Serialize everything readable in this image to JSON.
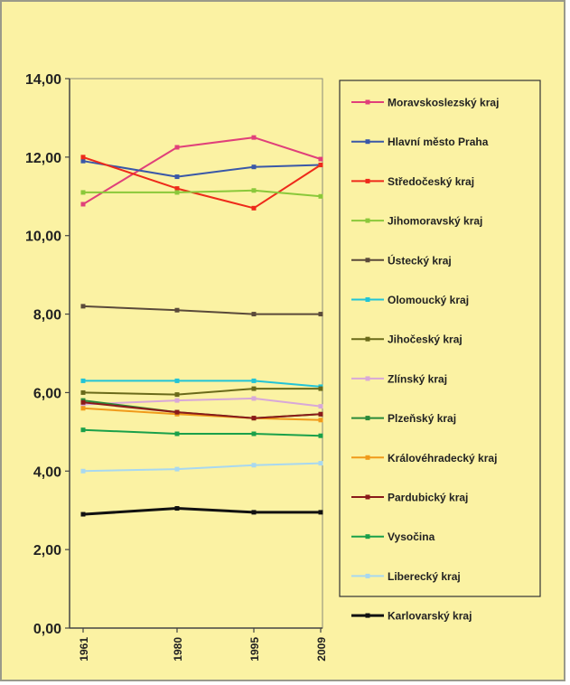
{
  "chart_data": {
    "type": "line",
    "title": "",
    "xlabel": "",
    "ylabel": "",
    "x": [
      "1961",
      "1980",
      "1995",
      "2009"
    ],
    "yticks": [
      "0,00",
      "2,00",
      "4,00",
      "6,00",
      "8,00",
      "10,00",
      "12,00",
      "14,00"
    ],
    "ylim": [
      0,
      14
    ],
    "grid": false,
    "legend_position": "right",
    "plot_background": "#fbf2a3",
    "series": [
      {
        "name": "Moravskoslezský kraj",
        "color": "#e0407a",
        "values": [
          10.8,
          12.25,
          12.5,
          11.95
        ]
      },
      {
        "name": "Hlavní město Praha",
        "color": "#3a58a8",
        "values": [
          11.9,
          11.5,
          11.75,
          11.8
        ]
      },
      {
        "name": "Středočeský kraj",
        "color": "#ee2a1a",
        "values": [
          12.0,
          11.2,
          10.7,
          11.8
        ]
      },
      {
        "name": "Jihomoravský kraj",
        "color": "#8ac83a",
        "values": [
          11.1,
          11.1,
          11.15,
          11.0
        ]
      },
      {
        "name": "Ústecký kraj",
        "color": "#5a4a3a",
        "values": [
          8.2,
          8.1,
          8.0,
          8.0
        ]
      },
      {
        "name": "Olomoucký kraj",
        "color": "#22c4d6",
        "values": [
          6.3,
          6.3,
          6.3,
          6.15
        ]
      },
      {
        "name": "Jihočeský kraj",
        "color": "#6a6a1a",
        "values": [
          6.0,
          5.95,
          6.1,
          6.1
        ]
      },
      {
        "name": "Zlínský kraj",
        "color": "#d8a8d8",
        "values": [
          5.7,
          5.8,
          5.85,
          5.65
        ]
      },
      {
        "name": "Plzeňský kraj",
        "color": "#2a8a3a",
        "values": [
          5.8,
          5.5,
          5.35,
          5.45
        ]
      },
      {
        "name": "Královéhradecký kraj",
        "color": "#f09a1a",
        "values": [
          5.6,
          5.45,
          5.35,
          5.3
        ]
      },
      {
        "name": "Pardubický kraj",
        "color": "#8a1a1a",
        "values": [
          5.75,
          5.5,
          5.35,
          5.45
        ]
      },
      {
        "name": "Vysočina",
        "color": "#1aa04a",
        "values": [
          5.05,
          4.95,
          4.95,
          4.9
        ]
      },
      {
        "name": "Liberecký kraj",
        "color": "#a8d8f0",
        "values": [
          4.0,
          4.05,
          4.15,
          4.2
        ]
      },
      {
        "name": "Karlovarský kraj",
        "color": "#111111",
        "values": [
          2.9,
          3.05,
          2.95,
          2.95
        ]
      }
    ]
  }
}
